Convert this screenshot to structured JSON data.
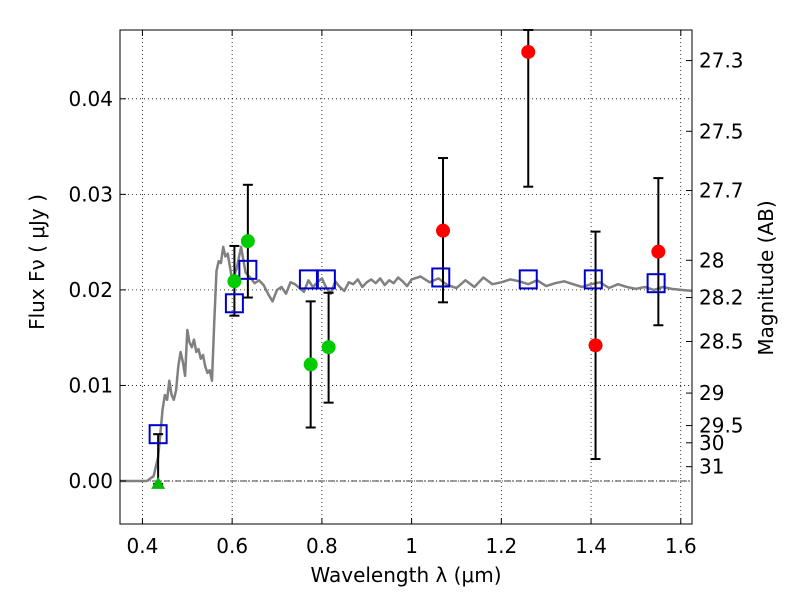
{
  "chart_data": {
    "type": "scatter",
    "title": "",
    "xlabel": "Wavelength  λ (μm)",
    "ylabel": "Flux  Fν  ( μJy )",
    "y2label": "Magnitude (AB)",
    "xlim": [
      0.35,
      1.625
    ],
    "ylim": [
      -0.0045,
      0.0472
    ],
    "grid": true,
    "x_ticks": [
      0.4,
      0.6,
      0.8,
      1.0,
      1.2,
      1.4,
      1.6
    ],
    "x_tick_labels": [
      "0.4",
      "0.6",
      "0.8",
      "1",
      "1.2",
      "1.4",
      "1.6"
    ],
    "y_ticks": [
      0.0,
      0.01,
      0.02,
      0.03,
      0.04
    ],
    "y_tick_labels": [
      "0.00",
      "0.01",
      "0.02",
      "0.03",
      "0.04"
    ],
    "y2_ticks": [
      {
        "label": "27.3",
        "flux": 0.044
      },
      {
        "label": "27.5",
        "flux": 0.0366
      },
      {
        "label": "27.7",
        "flux": 0.0304
      },
      {
        "label": "28",
        "flux": 0.0231
      },
      {
        "label": "28.2",
        "flux": 0.0192
      },
      {
        "label": "28.5",
        "flux": 0.0146
      },
      {
        "label": "29",
        "flux": 0.0092
      },
      {
        "label": "29.5",
        "flux": 0.0058
      },
      {
        "label": "30",
        "flux": 0.004
      },
      {
        "label": "31",
        "flux": 0.0015
      }
    ],
    "series": [
      {
        "color": "#808080",
        "kind": "line",
        "x": [
          0.35,
          0.41,
          0.425,
          0.435,
          0.44,
          0.445,
          0.45,
          0.455,
          0.46,
          0.465,
          0.47,
          0.475,
          0.48,
          0.485,
          0.49,
          0.495,
          0.5,
          0.505,
          0.51,
          0.515,
          0.52,
          0.525,
          0.53,
          0.535,
          0.54,
          0.545,
          0.55,
          0.555,
          0.56,
          0.565,
          0.57,
          0.575,
          0.58,
          0.585,
          0.59,
          0.6,
          0.61,
          0.62,
          0.63,
          0.64,
          0.65,
          0.66,
          0.67,
          0.68,
          0.69,
          0.7,
          0.71,
          0.72,
          0.73,
          0.74,
          0.75,
          0.76,
          0.77,
          0.78,
          0.79,
          0.8,
          0.81,
          0.82,
          0.83,
          0.84,
          0.85,
          0.86,
          0.87,
          0.88,
          0.89,
          0.9,
          0.91,
          0.92,
          0.93,
          0.94,
          0.95,
          0.96,
          0.97,
          0.98,
          0.99,
          1.0,
          1.02,
          1.04,
          1.06,
          1.08,
          1.1,
          1.12,
          1.14,
          1.16,
          1.18,
          1.2,
          1.22,
          1.24,
          1.26,
          1.28,
          1.3,
          1.32,
          1.34,
          1.36,
          1.38,
          1.4,
          1.42,
          1.44,
          1.46,
          1.48,
          1.5,
          1.52,
          1.54,
          1.56,
          1.58,
          1.6,
          1.625
        ],
        "values": [
          0.0,
          0.0,
          0.0005,
          0.0025,
          0.005,
          0.0075,
          0.009,
          0.0085,
          0.0105,
          0.009,
          0.0085,
          0.0095,
          0.012,
          0.0135,
          0.0125,
          0.011,
          0.0158,
          0.0145,
          0.014,
          0.0148,
          0.0135,
          0.0138,
          0.0128,
          0.0132,
          0.012,
          0.0113,
          0.0116,
          0.0105,
          0.0165,
          0.022,
          0.023,
          0.0228,
          0.0245,
          0.0235,
          0.0238,
          0.021,
          0.0222,
          0.0245,
          0.0218,
          0.0213,
          0.0207,
          0.021,
          0.0205,
          0.0196,
          0.0188,
          0.02,
          0.0203,
          0.0196,
          0.0208,
          0.0206,
          0.0202,
          0.0198,
          0.021,
          0.0203,
          0.0208,
          0.0212,
          0.0202,
          0.0196,
          0.0209,
          0.0203,
          0.0199,
          0.0208,
          0.0206,
          0.0211,
          0.0203,
          0.0208,
          0.0211,
          0.0207,
          0.0212,
          0.0205,
          0.021,
          0.0207,
          0.0213,
          0.0209,
          0.0204,
          0.0211,
          0.0214,
          0.0208,
          0.0212,
          0.0205,
          0.0202,
          0.021,
          0.0203,
          0.0213,
          0.0206,
          0.0208,
          0.0211,
          0.0209,
          0.0206,
          0.021,
          0.0204,
          0.0207,
          0.0209,
          0.0206,
          0.0203,
          0.0206,
          0.0208,
          0.0202,
          0.0206,
          0.0203,
          0.0201,
          0.0203,
          0.02,
          0.0203,
          0.0201,
          0.02,
          0.0199
        ]
      },
      {
        "color": "#0000cc",
        "kind": "open-square",
        "x": [
          0.435,
          0.605,
          0.635,
          0.77,
          0.81,
          1.065,
          1.26,
          1.405,
          1.545
        ],
        "values": [
          0.0049,
          0.0186,
          0.0221,
          0.0211,
          0.0211,
          0.0213,
          0.0211,
          0.0211,
          0.0207
        ]
      },
      {
        "color": "#00cc00",
        "kind": "filled-circle",
        "x": [
          0.605,
          0.635,
          0.775,
          0.815
        ],
        "values": [
          0.0209,
          0.0251,
          0.0122,
          0.014
        ],
        "err_low": [
          0.0173,
          0.0192,
          0.0056,
          0.0082
        ],
        "err_high": [
          0.0246,
          0.031,
          0.0188,
          0.0197
        ]
      },
      {
        "color": "#ff0000",
        "kind": "filled-circle",
        "x": [
          1.07,
          1.26,
          1.41,
          1.55
        ],
        "values": [
          0.0262,
          0.0449,
          0.0142,
          0.024
        ],
        "err_low": [
          0.0187,
          0.0308,
          0.0023,
          0.0163
        ],
        "err_high": [
          0.0338,
          0.0472,
          0.0261,
          0.0317
        ]
      },
      {
        "color": "#00bb00",
        "kind": "triangle-up",
        "x": [
          0.435
        ],
        "values": [
          -0.0003
        ],
        "err_low": [
          -0.0003
        ],
        "err_high": [
          0.0049
        ]
      }
    ]
  }
}
